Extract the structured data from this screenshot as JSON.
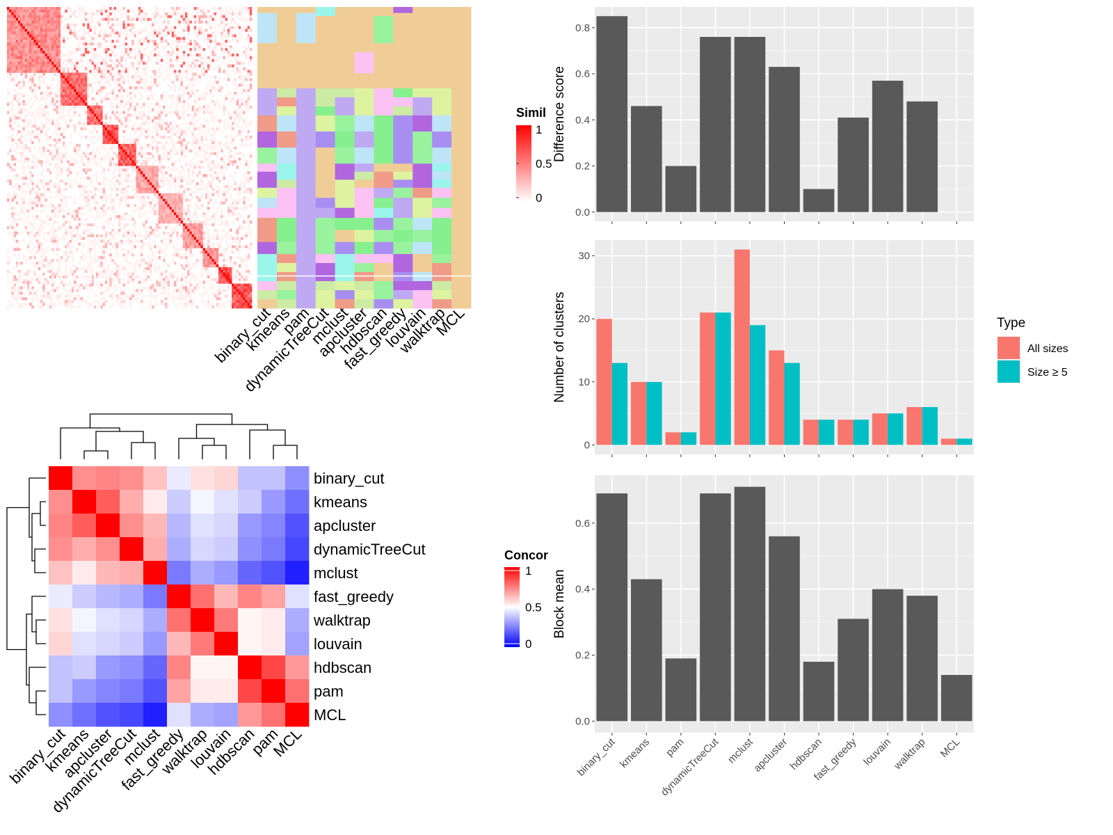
{
  "chart_data": [
    {
      "id": "similarity_heatmap",
      "type": "heatmap",
      "description_values": "clustered pairwise similarity matrix, red = 1, white = 0",
      "legend": {
        "title": "Similarity",
        "ticks": [
          "1",
          "0.5",
          "0"
        ],
        "colors": [
          "#ff0000",
          "#ffffff"
        ]
      },
      "blocks": [
        0.0,
        0.22,
        0.33,
        0.39,
        0.45,
        0.53,
        0.62,
        0.72,
        0.8,
        0.86,
        0.92,
        1.0
      ]
    },
    {
      "id": "membership_heatmap",
      "type": "heatmap",
      "columns": [
        "binary_cut",
        "kmeans",
        "pam",
        "dynamicTreeCut",
        "mclust",
        "apcluster",
        "hdbscan",
        "fast_greedy",
        "louvain",
        "walktrap",
        "MCL"
      ]
    },
    {
      "id": "concordance_heatmap",
      "type": "heatmap",
      "rows": [
        "binary_cut",
        "kmeans",
        "apcluster",
        "dynamicTreeCut",
        "mclust",
        "fast_greedy",
        "walktrap",
        "louvain",
        "hdbscan",
        "pam",
        "MCL"
      ],
      "columns": [
        "binary_cut",
        "kmeans",
        "apcluster",
        "dynamicTreeCut",
        "mclust",
        "fast_greedy",
        "walktrap",
        "louvain",
        "hdbscan",
        "pam",
        "MCL"
      ],
      "legend": {
        "title": "Concordance",
        "ticks": [
          "1",
          "0.5",
          "0"
        ],
        "colors": [
          "#0000ff",
          "#ffffff",
          "#ff0000"
        ]
      },
      "values": [
        [
          1.0,
          0.72,
          0.74,
          0.72,
          0.62,
          0.46,
          0.56,
          0.58,
          0.38,
          0.38,
          0.28
        ],
        [
          0.72,
          1.0,
          0.82,
          0.66,
          0.54,
          0.4,
          0.48,
          0.44,
          0.4,
          0.3,
          0.22
        ],
        [
          0.74,
          0.82,
          1.0,
          0.72,
          0.64,
          0.36,
          0.44,
          0.42,
          0.3,
          0.26,
          0.16
        ],
        [
          0.72,
          0.66,
          0.72,
          1.0,
          0.66,
          0.34,
          0.42,
          0.4,
          0.28,
          0.24,
          0.14
        ],
        [
          0.62,
          0.54,
          0.64,
          0.66,
          1.0,
          0.24,
          0.34,
          0.3,
          0.2,
          0.16,
          0.06
        ],
        [
          0.46,
          0.4,
          0.36,
          0.34,
          0.24,
          1.0,
          0.78,
          0.64,
          0.74,
          0.68,
          0.44
        ],
        [
          0.56,
          0.48,
          0.44,
          0.42,
          0.34,
          0.78,
          1.0,
          0.76,
          0.52,
          0.54,
          0.34
        ],
        [
          0.58,
          0.44,
          0.42,
          0.4,
          0.3,
          0.64,
          0.76,
          1.0,
          0.52,
          0.54,
          0.32
        ],
        [
          0.38,
          0.4,
          0.3,
          0.28,
          0.2,
          0.74,
          0.52,
          0.52,
          1.0,
          0.86,
          0.7
        ],
        [
          0.38,
          0.3,
          0.26,
          0.24,
          0.16,
          0.68,
          0.54,
          0.54,
          0.86,
          1.0,
          0.78
        ],
        [
          0.28,
          0.22,
          0.16,
          0.14,
          0.06,
          0.44,
          0.34,
          0.32,
          0.7,
          0.78,
          1.0
        ]
      ]
    },
    {
      "id": "difference_score",
      "type": "bar",
      "categories": [
        "binary_cut",
        "kmeans",
        "pam",
        "dynamicTreeCut",
        "mclust",
        "apcluster",
        "hdbscan",
        "fast_greedy",
        "louvain",
        "walktrap",
        "MCL"
      ],
      "values": [
        0.85,
        0.46,
        0.2,
        0.76,
        0.76,
        0.63,
        0.1,
        0.41,
        0.57,
        0.48,
        0.0
      ],
      "ylabel": "Difference score",
      "ylim": [
        -0.04,
        0.89
      ],
      "yticks": [
        "0.0",
        "0.2",
        "0.4",
        "0.6",
        "0.8"
      ],
      "color": "#595959"
    },
    {
      "id": "number_of_clusters",
      "type": "bar",
      "categories": [
        "binary_cut",
        "kmeans",
        "pam",
        "dynamicTreeCut",
        "mclust",
        "apcluster",
        "hdbscan",
        "fast_greedy",
        "louvain",
        "walktrap",
        "MCL"
      ],
      "series": [
        {
          "name": "All sizes",
          "color": "#f8766d",
          "values": [
            20,
            10,
            2,
            21,
            31,
            15,
            4,
            4,
            5,
            6,
            1
          ]
        },
        {
          "name": "Size ≥ 5",
          "color": "#00bfc4",
          "values": [
            13,
            10,
            2,
            21,
            19,
            13,
            4,
            4,
            5,
            6,
            1
          ]
        }
      ],
      "ylabel": "Number of clusters",
      "ylim": [
        -1.5,
        32.5
      ],
      "yticks": [
        "0",
        "10",
        "20",
        "30"
      ],
      "legend": {
        "title": "Type",
        "position": "right"
      }
    },
    {
      "id": "block_mean",
      "type": "bar",
      "categories": [
        "binary_cut",
        "kmeans",
        "pam",
        "dynamicTreeCut",
        "mclust",
        "apcluster",
        "hdbscan",
        "fast_greedy",
        "louvain",
        "walktrap",
        "MCL"
      ],
      "values": [
        0.69,
        0.43,
        0.19,
        0.69,
        0.71,
        0.56,
        0.18,
        0.31,
        0.4,
        0.38,
        0.14
      ],
      "ylabel": "Block mean",
      "ylim": [
        -0.035,
        0.745
      ],
      "yticks": [
        "0.0",
        "0.2",
        "0.4",
        "0.6"
      ],
      "color": "#595959"
    }
  ]
}
